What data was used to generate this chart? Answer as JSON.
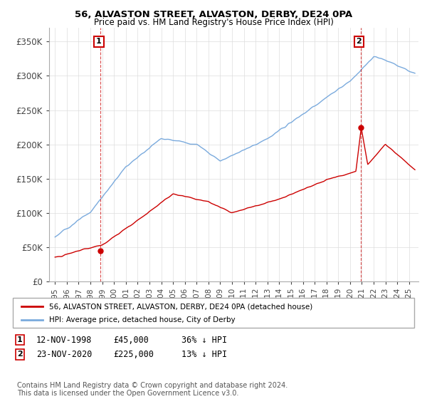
{
  "title1": "56, ALVASTON STREET, ALVASTON, DERBY, DE24 0PA",
  "title2": "Price paid vs. HM Land Registry's House Price Index (HPI)",
  "ylim": [
    0,
    370000
  ],
  "yticks": [
    0,
    50000,
    100000,
    150000,
    200000,
    250000,
    300000,
    350000
  ],
  "ytick_labels": [
    "£0",
    "£50K",
    "£100K",
    "£150K",
    "£200K",
    "£250K",
    "£300K",
    "£350K"
  ],
  "hpi_color": "#7aaadd",
  "price_color": "#cc0000",
  "marker_color": "#cc0000",
  "annotation_box_color": "#cc0000",
  "sale1_x": 1998.87,
  "sale1_price": 45000,
  "sale1_label": "1",
  "sale2_x": 2020.9,
  "sale2_price": 225000,
  "sale2_label": "2",
  "legend_label1": "56, ALVASTON STREET, ALVASTON, DERBY, DE24 0PA (detached house)",
  "legend_label2": "HPI: Average price, detached house, City of Derby",
  "sale1_date": "12-NOV-1998",
  "sale1_amount": "£45,000",
  "sale1_hpi": "36% ↓ HPI",
  "sale2_date": "23-NOV-2020",
  "sale2_amount": "£225,000",
  "sale2_hpi": "13% ↓ HPI",
  "footnote": "Contains HM Land Registry data © Crown copyright and database right 2024.\nThis data is licensed under the Open Government Licence v3.0.",
  "bg_color": "#ffffff",
  "grid_color": "#dddddd"
}
